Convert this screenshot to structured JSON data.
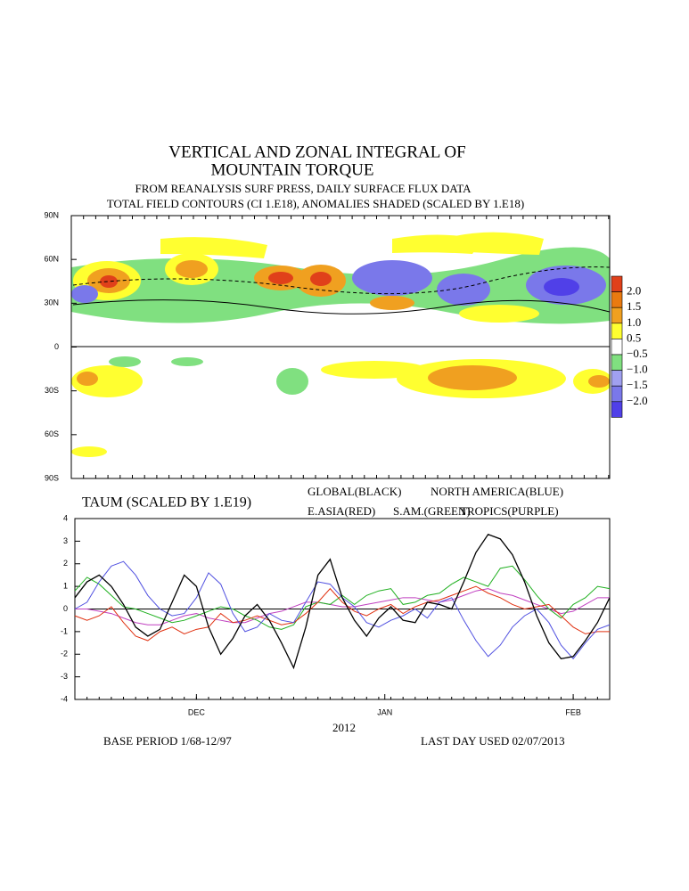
{
  "map": {
    "title_lines": [
      "VERTICAL AND ZONAL INTEGRAL OF",
      "MOUNTAIN TORQUE"
    ],
    "subtitle_lines": [
      "FROM REANALYSIS SURF PRESS, DAILY SURFACE FLUX DATA",
      "TOTAL FIELD CONTOURS (CI 1.E18),  ANOMALIES SHADED (SCALED BY 1.E18)"
    ],
    "lat_labels": [
      "90N",
      "60N",
      "30N",
      "0",
      "30S",
      "60S",
      "90S"
    ],
    "colorbar": {
      "levels": [
        {
          "value": 2,
          "label": "2.0"
        },
        {
          "value": 1.5,
          "label": "1.5"
        },
        {
          "value": 1,
          "label": "1.0"
        },
        {
          "value": 0.5,
          "label": "0.5"
        },
        {
          "value": -0.5,
          "label": "−0.5"
        },
        {
          "value": -1,
          "label": "−1.0"
        },
        {
          "value": -1.5,
          "label": "−1.5"
        },
        {
          "value": -2,
          "label": "−2.0"
        }
      ],
      "colors": [
        "#e0401a",
        "#ea7a10",
        "#f0a020",
        "#ffff30",
        "#ffffff",
        "#80e080",
        "#a0a0f0",
        "#7a78ea",
        "#5040e8"
      ]
    }
  },
  "chart_data": {
    "type": "line",
    "title": "TAUM (SCALED BY 1.E19)",
    "xlabel": "2012",
    "xlim": [
      0,
      44
    ],
    "xticks": [
      {
        "value": 10,
        "label": "DEC"
      },
      {
        "value": 25.5,
        "label": "JAN"
      },
      {
        "value": 41,
        "label": "FEB"
      }
    ],
    "ylim": [
      -4,
      4
    ],
    "yticks": [
      4,
      3,
      2,
      1,
      0,
      -1,
      -2,
      -3,
      -4
    ],
    "series": [
      {
        "name": "GLOBAL(BLACK)",
        "color": "#000000",
        "values": [
          0.5,
          1.2,
          1.5,
          1.0,
          0.2,
          -0.8,
          -1.2,
          -0.9,
          0.3,
          1.5,
          1.0,
          -0.8,
          -2.0,
          -1.3,
          -0.3,
          0.2,
          -0.5,
          -1.5,
          -2.6,
          -0.8,
          1.5,
          2.2,
          0.5,
          -0.5,
          -1.2,
          -0.4,
          0.1,
          -0.5,
          -0.6,
          0.3,
          0.2,
          0.0,
          1.2,
          2.5,
          3.3,
          3.1,
          2.4,
          1.2,
          -0.3,
          -1.5,
          -2.2,
          -2.1,
          -1.4,
          -0.6,
          0.5
        ]
      },
      {
        "name": "NORTH AMERICA(BLUE)",
        "color": "#5050e0",
        "values": [
          0.0,
          0.3,
          1.2,
          1.9,
          2.1,
          1.5,
          0.6,
          0.0,
          -0.3,
          -0.2,
          0.5,
          1.6,
          1.1,
          -0.2,
          -1.0,
          -0.8,
          -0.2,
          -0.5,
          -0.6,
          0.3,
          1.2,
          1.1,
          0.5,
          0.1,
          -0.6,
          -0.8,
          -0.5,
          -0.3,
          0.0,
          -0.4,
          0.3,
          0.5,
          -0.5,
          -1.4,
          -2.1,
          -1.6,
          -0.8,
          -0.3,
          0.0,
          -0.6,
          -1.6,
          -2.2,
          -1.5,
          -0.9,
          -0.7
        ]
      },
      {
        "name": "E.ASIA(RED)",
        "color": "#e03010",
        "values": [
          -0.3,
          -0.5,
          -0.3,
          0.1,
          -0.6,
          -1.2,
          -1.4,
          -1.0,
          -0.8,
          -1.1,
          -0.9,
          -0.8,
          -0.2,
          -0.6,
          -0.5,
          -0.3,
          -0.5,
          -0.7,
          -0.6,
          -0.2,
          0.3,
          0.9,
          0.3,
          -0.1,
          -0.3,
          0.0,
          0.2,
          -0.2,
          0.1,
          0.3,
          0.4,
          0.6,
          0.8,
          1.0,
          0.7,
          0.5,
          0.2,
          0.0,
          0.1,
          0.2,
          -0.3,
          -0.8,
          -1.1,
          -1.0,
          -1.0
        ]
      },
      {
        "name": "S.AM.(GREEN)",
        "color": "#20b020",
        "values": [
          0.8,
          1.4,
          1.1,
          0.6,
          0.1,
          0.0,
          -0.2,
          -0.4,
          -0.6,
          -0.5,
          -0.3,
          -0.1,
          0.1,
          0.0,
          -0.3,
          -0.5,
          -0.8,
          -0.9,
          -0.7,
          0.1,
          0.3,
          0.2,
          0.6,
          0.2,
          0.6,
          0.8,
          0.9,
          0.2,
          0.3,
          0.6,
          0.7,
          1.1,
          1.4,
          1.2,
          1.0,
          1.8,
          1.9,
          1.3,
          0.6,
          0.0,
          -0.4,
          0.2,
          0.5,
          1.0,
          0.9
        ]
      },
      {
        "name": "TROPICS(PURPLE)",
        "color": "#c040c0",
        "values": [
          0.0,
          0.0,
          -0.1,
          -0.2,
          -0.4,
          -0.6,
          -0.7,
          -0.7,
          -0.5,
          -0.3,
          -0.2,
          -0.4,
          -0.5,
          -0.6,
          -0.6,
          -0.4,
          -0.2,
          -0.1,
          0.1,
          0.3,
          0.3,
          0.2,
          0.1,
          0.1,
          0.2,
          0.3,
          0.4,
          0.5,
          0.5,
          0.4,
          0.3,
          0.4,
          0.6,
          0.8,
          0.9,
          0.7,
          0.6,
          0.4,
          0.2,
          0.0,
          -0.2,
          -0.1,
          0.2,
          0.5,
          0.5
        ]
      }
    ]
  },
  "footer": {
    "left": "BASE PERIOD  1/68-12/97",
    "right": "LAST DAY USED 02/07/2013"
  }
}
